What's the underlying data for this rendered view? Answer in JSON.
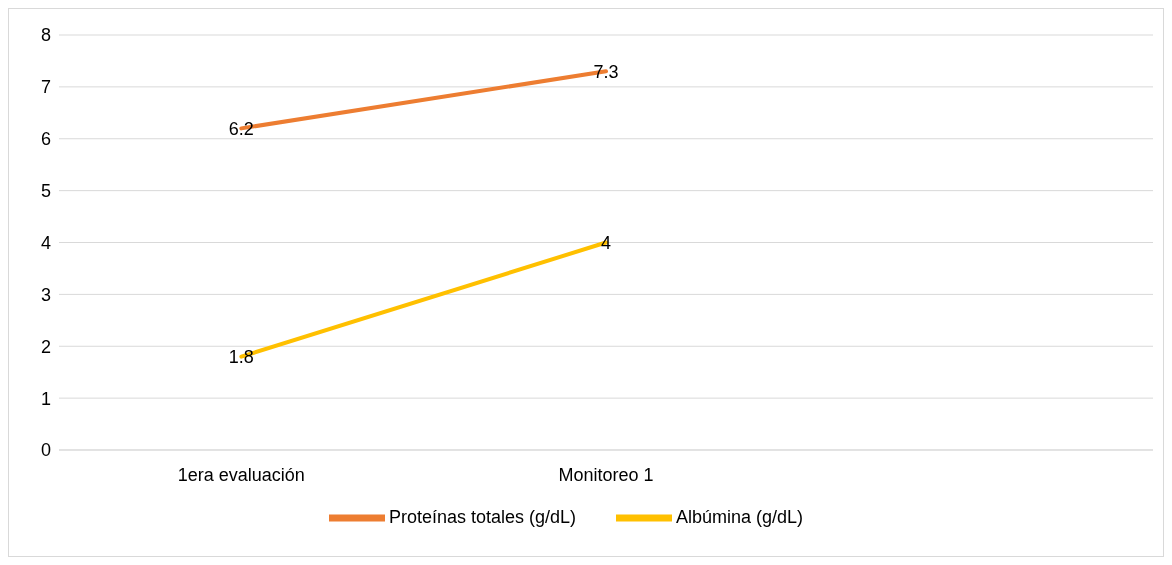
{
  "chart_data": {
    "type": "line",
    "categories": [
      "1era evaluación",
      "Monitoreo 1",
      null
    ],
    "series": [
      {
        "name": "Proteínas totales (g/dL)",
        "color": "#ed7d31",
        "values": [
          6.2,
          7.3,
          null
        ]
      },
      {
        "name": "Albúmina (g/dL)",
        "color": "#ffc000",
        "values": [
          1.8,
          4,
          null
        ]
      }
    ],
    "ylim": [
      0,
      8
    ],
    "yticks": [
      0,
      1,
      2,
      3,
      4,
      5,
      6,
      7,
      8
    ],
    "grid": "y",
    "legend": "bottom",
    "marker": "none",
    "line_style": "solid",
    "data_labels": true
  }
}
